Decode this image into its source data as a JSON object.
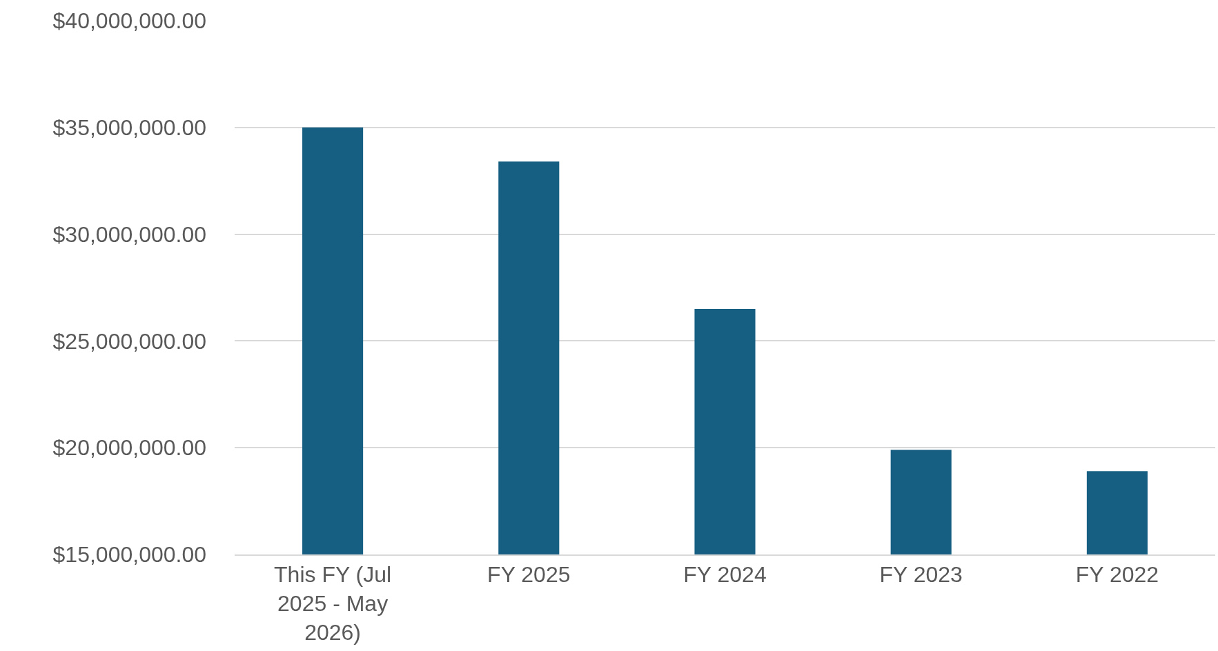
{
  "chart_data": {
    "type": "bar",
    "categories": [
      "This FY (Jul 2025 - May 2026)",
      "FY 2025",
      "FY 2024",
      "FY 2023",
      "FY 2022"
    ],
    "values": [
      35000000,
      33400000,
      26500000,
      19900000,
      18900000
    ],
    "color": "#175f82",
    "ylim": [
      15000000,
      40000000
    ],
    "yticks": [
      {
        "value": 15000000,
        "label": "$15,000,000.00"
      },
      {
        "value": 20000000,
        "label": "$20,000,000.00"
      },
      {
        "value": 25000000,
        "label": "$25,000,000.00"
      },
      {
        "value": 30000000,
        "label": "$30,000,000.00"
      },
      {
        "value": 35000000,
        "label": "$35,000,000.00"
      },
      {
        "value": 40000000,
        "label": "$40,000,000.00"
      }
    ],
    "grid": "y"
  }
}
